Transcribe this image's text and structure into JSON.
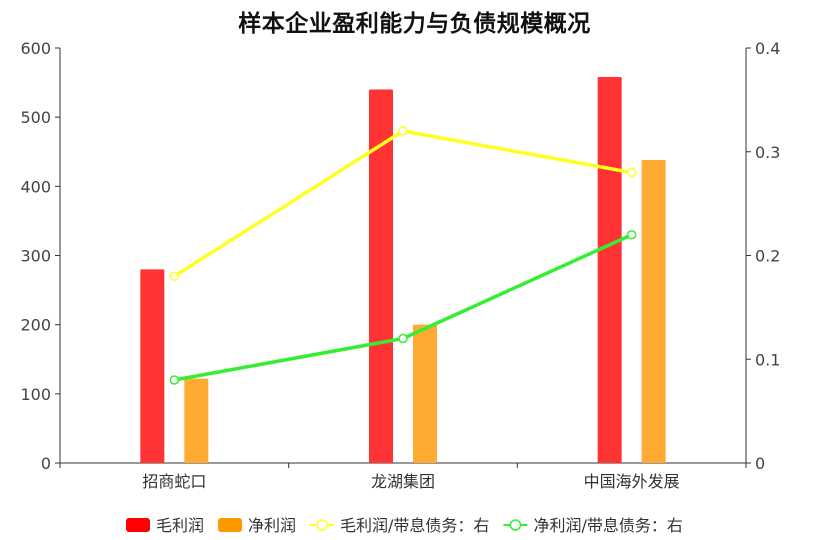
{
  "chart_data": {
    "type": "bar",
    "title": "样本企业盈利能力与负债规模概况",
    "categories": [
      "招商蛇口",
      "龙湖集团",
      "中国海外发展"
    ],
    "left_axis": {
      "ylim": [
        0,
        600
      ],
      "ticks": [
        0,
        100,
        200,
        300,
        400,
        500,
        600
      ]
    },
    "right_axis": {
      "ylim": [
        0,
        0.4
      ],
      "ticks": [
        "0",
        "0.1",
        "0.2",
        "0.3",
        "0.4"
      ]
    },
    "grid": false,
    "legend_position": "bottom",
    "series": [
      {
        "name": "毛利润",
        "kind": "bar",
        "axis": "left",
        "color": "#ff3333",
        "legend_color": "#ff0000",
        "values": [
          280,
          540,
          558
        ]
      },
      {
        "name": "净利润",
        "kind": "bar",
        "axis": "left",
        "color": "#ffaa33",
        "legend_color": "#ff9900",
        "values": [
          122,
          200,
          438
        ]
      },
      {
        "name": "毛利润/带息债务：右",
        "kind": "line",
        "axis": "right",
        "color": "#ffff22",
        "values": [
          0.18,
          0.32,
          0.28
        ]
      },
      {
        "name": "净利润/带息债务：右",
        "kind": "line",
        "axis": "right",
        "color": "#33ee33",
        "values": [
          0.08,
          0.12,
          0.22
        ]
      }
    ]
  }
}
